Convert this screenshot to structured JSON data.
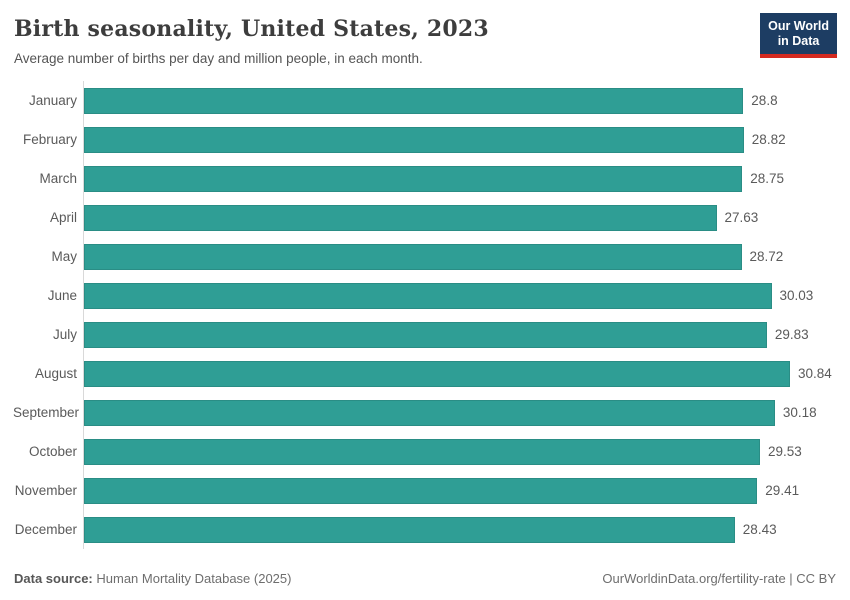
{
  "header": {
    "title": "Birth seasonality, United States, 2023",
    "subtitle": "Average number of births per day and million people, in each month."
  },
  "logo": {
    "line1": "Our World",
    "line2": "in Data",
    "background_color": "#1d3d63",
    "accent_color": "#d42a20"
  },
  "chart_data": {
    "type": "bar",
    "orientation": "horizontal",
    "title": "Birth seasonality, United States, 2023",
    "subtitle": "Average number of births per day and million people, in each month.",
    "categories": [
      "January",
      "February",
      "March",
      "April",
      "May",
      "June",
      "July",
      "August",
      "September",
      "October",
      "November",
      "December"
    ],
    "values": [
      28.8,
      28.82,
      28.75,
      27.63,
      28.72,
      30.03,
      29.83,
      30.84,
      30.18,
      29.53,
      29.41,
      28.43
    ],
    "xlim": [
      0,
      30.84
    ],
    "bar_color": "#2f9e95",
    "axis_line_color": "#d9d9d9",
    "grid": false,
    "value_labels": true,
    "legend": "none"
  },
  "footer": {
    "source_label": "Data source:",
    "source_value": "Human Mortality Database (2025)",
    "credit": "OurWorldinData.org/fertility-rate | CC BY"
  }
}
